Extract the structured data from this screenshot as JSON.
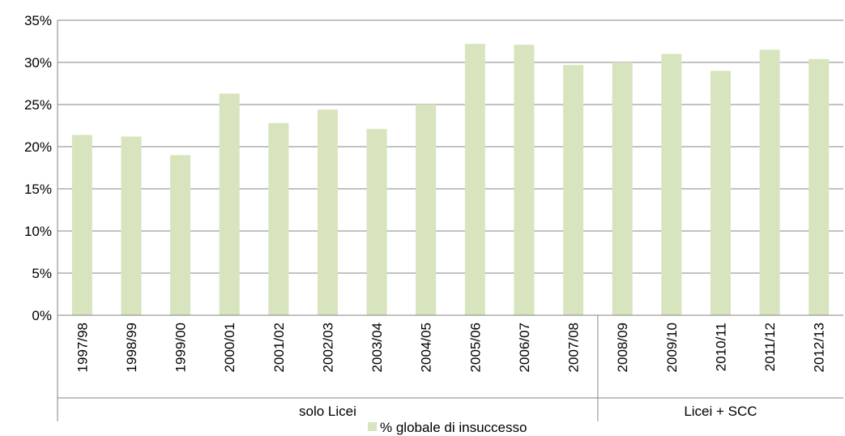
{
  "chart_data": {
    "type": "bar",
    "categories": [
      "1997/98",
      "1998/99",
      "1999/00",
      "2000/01",
      "2001/02",
      "2002/03",
      "2003/04",
      "2004/05",
      "2005/06",
      "2006/07",
      "2007/08",
      "2008/09",
      "2009/10",
      "2010/11",
      "2011/12",
      "2012/13"
    ],
    "series": [
      {
        "name": "% globale di insuccesso",
        "color": "#d7e4bd",
        "values": [
          21.4,
          21.2,
          19.0,
          26.3,
          22.8,
          24.4,
          22.1,
          25.0,
          32.2,
          32.1,
          29.7,
          30.0,
          31.0,
          29.0,
          31.5,
          30.4
        ]
      }
    ],
    "groups": [
      {
        "label": "solo Licei",
        "start": 0,
        "end": 10
      },
      {
        "label": "Licei + SCC",
        "start": 11,
        "end": 15
      }
    ],
    "y_ticks": [
      "0%",
      "5%",
      "10%",
      "15%",
      "20%",
      "25%",
      "30%",
      "35%"
    ],
    "ylim": [
      0,
      35
    ],
    "title": "",
    "xlabel": "",
    "ylabel": "",
    "grid": true,
    "legend_position": "bottom"
  }
}
